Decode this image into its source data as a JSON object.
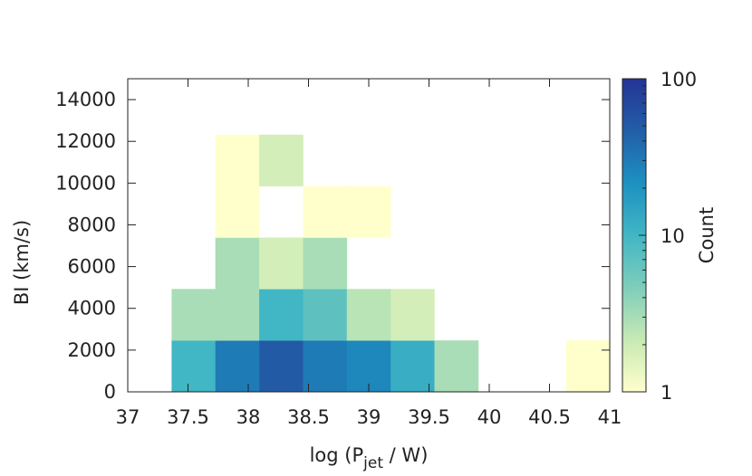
{
  "chart_data": {
    "type": "heatmap",
    "title": "",
    "xlabel": {
      "prefix": "log (P",
      "subscript": "jet",
      "suffix": " / W)"
    },
    "ylabel": "BI (km/s)",
    "xlim": [
      37,
      41
    ],
    "ylim": [
      0,
      15000
    ],
    "xticks": [
      "37",
      "37.5",
      "38",
      "38.5",
      "39",
      "39.5",
      "40",
      "40.5",
      "41"
    ],
    "yticks": [
      "0",
      "2000",
      "4000",
      "6000",
      "8000",
      "10000",
      "12000",
      "14000"
    ],
    "x_bin_edges": [
      37.0,
      37.364,
      37.727,
      38.091,
      38.455,
      38.818,
      39.182,
      39.545,
      39.909,
      40.273,
      40.636,
      41.0
    ],
    "y_bin_edges": [
      0,
      2464,
      4929,
      7393,
      9857,
      12321
    ],
    "counts": [
      [
        0,
        10,
        30,
        50,
        30,
        25,
        12,
        3,
        0,
        0,
        1
      ],
      [
        0,
        3,
        3,
        10,
        7,
        2.5,
        1.8,
        0,
        0,
        0,
        0
      ],
      [
        0,
        0,
        3,
        1.8,
        3,
        0,
        0,
        0,
        0,
        0,
        0
      ],
      [
        0,
        0,
        1,
        0,
        1,
        1,
        0,
        0,
        0,
        0,
        0
      ],
      [
        0,
        0,
        1,
        1.8,
        0,
        0,
        0,
        0,
        0,
        0,
        0
      ]
    ],
    "colorbar": {
      "label": "Count",
      "scale": "log",
      "range": [
        1,
        100
      ],
      "ticks": [
        "1",
        "10",
        "100"
      ],
      "colors": [
        "#ffffcc",
        "#c7e9b4",
        "#7fcdbb",
        "#41b6c4",
        "#1d91c0",
        "#225ea8",
        "#253494"
      ]
    },
    "grid": false
  }
}
